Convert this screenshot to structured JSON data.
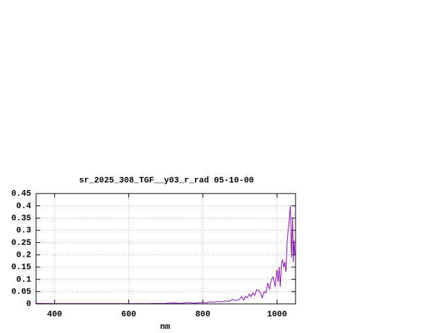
{
  "chart_data": {
    "type": "line",
    "title": "sr_2025_308_TGF__y03_r_rad 05-10-00",
    "x_label": "nm",
    "x": [
      350,
      400,
      450,
      500,
      550,
      600,
      650,
      700,
      720,
      740,
      760,
      780,
      800,
      810,
      820,
      830,
      840,
      850,
      860,
      870,
      880,
      890,
      900,
      905,
      910,
      915,
      920,
      925,
      930,
      935,
      940,
      945,
      950,
      955,
      960,
      965,
      970,
      975,
      980,
      985,
      990,
      995,
      1000,
      1003,
      1006,
      1009,
      1012,
      1015,
      1018,
      1021,
      1024,
      1027,
      1030,
      1033,
      1036,
      1039,
      1042,
      1044,
      1046,
      1048
    ],
    "values": [
      0.002,
      0.001,
      0.001,
      0.001,
      0.001,
      0.001,
      0.001,
      0.002,
      0.004,
      0.002,
      0.005,
      0.003,
      0.006,
      0.004,
      0.009,
      0.006,
      0.01,
      0.008,
      0.012,
      0.01,
      0.018,
      0.014,
      0.02,
      0.03,
      0.015,
      0.03,
      0.025,
      0.04,
      0.03,
      0.045,
      0.035,
      0.058,
      0.055,
      0.045,
      0.025,
      0.05,
      0.045,
      0.085,
      0.06,
      0.1,
      0.11,
      0.07,
      0.14,
      0.09,
      0.15,
      0.07,
      0.16,
      0.18,
      0.15,
      0.17,
      0.13,
      0.24,
      0.3,
      0.34,
      0.4,
      0.19,
      0.35,
      0.17,
      0.26,
      0.2
    ],
    "color": "#9400d3",
    "xlim": [
      350,
      1050
    ],
    "xticks": [
      400,
      600,
      800,
      1000
    ],
    "ylim": [
      0,
      0.45
    ],
    "yticks": [
      0,
      0.05,
      0.1,
      0.15,
      0.2,
      0.25,
      0.3,
      0.35,
      0.4,
      0.45
    ],
    "grid": true
  }
}
